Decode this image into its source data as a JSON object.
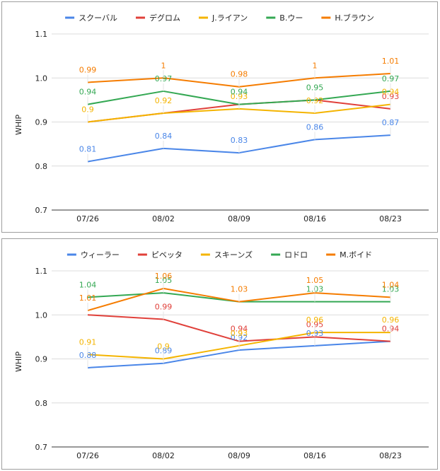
{
  "chart_data": [
    {
      "type": "line",
      "ylabel": "WHIP",
      "ylim": [
        0.7,
        1.1
      ],
      "yticks": [
        "0.7",
        "0.8",
        "0.9",
        "1.0",
        "1.1"
      ],
      "grid": true,
      "legend_position": "top",
      "categories": [
        "07/26",
        "08/02",
        "08/09",
        "08/16",
        "08/23"
      ],
      "series": [
        {
          "name": "スクーバル",
          "color": "#4a86e8",
          "values": [
            0.81,
            0.84,
            0.83,
            0.86,
            0.87
          ],
          "labels": [
            "0.81",
            "0.84",
            "0.83",
            "0.86",
            "0.87"
          ]
        },
        {
          "name": "デグロム",
          "color": "#e0403a",
          "values": [
            0.9,
            0.92,
            0.94,
            0.95,
            0.93
          ],
          "labels": [
            "",
            "",
            "",
            "",
            "0.93"
          ]
        },
        {
          "name": "J.ライアン",
          "color": "#f4b400",
          "values": [
            0.9,
            0.92,
            0.93,
            0.92,
            0.94
          ],
          "labels": [
            "0.9",
            "0.92",
            "0.93",
            "0.92",
            "0.94"
          ]
        },
        {
          "name": "B.ウー",
          "color": "#34a853",
          "values": [
            0.94,
            0.97,
            0.94,
            0.95,
            0.97
          ],
          "labels": [
            "0.94",
            "0.97",
            "0.94",
            "0.95",
            "0.97"
          ]
        },
        {
          "name": "H.ブラウン",
          "color": "#f57c00",
          "values": [
            0.99,
            1.0,
            0.98,
            1.0,
            1.01
          ],
          "labels": [
            "0.99",
            "1",
            "0.98",
            "1",
            "1.01"
          ]
        }
      ]
    },
    {
      "type": "line",
      "ylabel": "WHIP",
      "ylim": [
        0.7,
        1.1
      ],
      "yticks": [
        "0.7",
        "0.8",
        "0.9",
        "1.0",
        "1.1"
      ],
      "grid": true,
      "legend_position": "top",
      "categories": [
        "07/26",
        "08/02",
        "08/09",
        "08/16",
        "08/23"
      ],
      "series": [
        {
          "name": "ウィーラー",
          "color": "#4a86e8",
          "values": [
            0.88,
            0.89,
            0.92,
            0.93,
            0.94
          ],
          "labels": [
            "0.88",
            "0.89",
            "0.92",
            "0.93",
            ""
          ]
        },
        {
          "name": "ピベッタ",
          "color": "#e0403a",
          "values": [
            1.0,
            0.99,
            0.94,
            0.95,
            0.94
          ],
          "labels": [
            "",
            "0.99",
            "0.94",
            "0.95",
            "0.94"
          ]
        },
        {
          "name": "スキーンズ",
          "color": "#f4b400",
          "values": [
            0.91,
            0.9,
            0.93,
            0.96,
            0.96
          ],
          "labels": [
            "0.91",
            "0.9",
            "0.93",
            "0.96",
            "0.96"
          ]
        },
        {
          "name": "ロドロ",
          "color": "#34a853",
          "values": [
            1.04,
            1.05,
            1.03,
            1.03,
            1.03
          ],
          "labels": [
            "1.04",
            "1.05",
            "",
            "1.03",
            "1.03"
          ]
        },
        {
          "name": "M.ボイド",
          "color": "#f57c00",
          "values": [
            1.01,
            1.06,
            1.03,
            1.05,
            1.04
          ],
          "labels": [
            "1.01",
            "1.06",
            "1.03",
            "1.05",
            "1.04"
          ]
        }
      ]
    }
  ]
}
